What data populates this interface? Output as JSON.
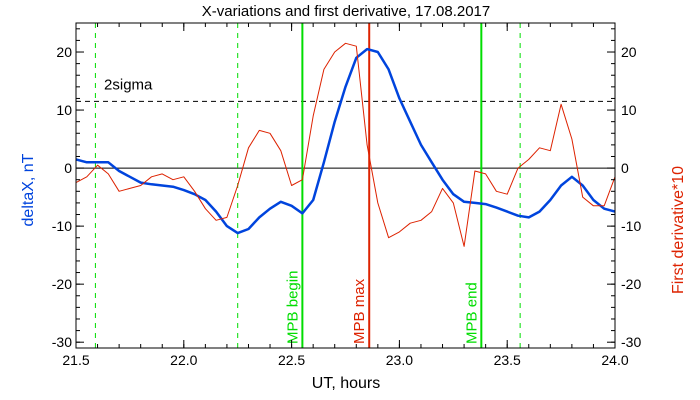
{
  "chart_data": {
    "type": "line",
    "title": "X-variations and first derivative, 17.08.2017",
    "xlabel": "UT, hours",
    "ylabel_left": "deltaX, nT",
    "ylabel_right": "First derivative*10",
    "xlim": [
      21.5,
      24.0
    ],
    "ylim": [
      -31,
      25
    ],
    "x_ticks": [
      "21.5",
      "22.0",
      "22.5",
      "23.0",
      "23.5",
      "24.0"
    ],
    "y_ticks": [
      "20",
      "10",
      "0",
      "-10",
      "-20",
      "-30"
    ],
    "threshold": {
      "label": "2sigma",
      "value": 11.5
    },
    "markers": [
      {
        "name": "MPB begin",
        "x": 22.55,
        "color": "#00dd00",
        "style": "solid"
      },
      {
        "name": "MPB max",
        "x": 22.86,
        "color": "#dd2200",
        "style": "solid"
      },
      {
        "name": "MPB end",
        "x": 23.38,
        "color": "#00dd00",
        "style": "solid"
      },
      {
        "name": "",
        "x": 21.59,
        "color": "#00dd00",
        "style": "dashed"
      },
      {
        "name": "",
        "x": 22.25,
        "color": "#00dd00",
        "style": "dashed"
      },
      {
        "name": "",
        "x": 23.56,
        "color": "#00dd00",
        "style": "dashed"
      }
    ],
    "series": [
      {
        "color": "#0044dd",
        "x": [
          21.5,
          21.55,
          21.6,
          21.65,
          21.7,
          21.75,
          21.8,
          21.85,
          21.9,
          21.95,
          22.0,
          22.05,
          22.1,
          22.15,
          22.2,
          22.25,
          22.3,
          22.35,
          22.4,
          22.45,
          22.5,
          22.55,
          22.6,
          22.65,
          22.7,
          22.75,
          22.8,
          22.85,
          22.9,
          22.95,
          23.0,
          23.05,
          23.1,
          23.15,
          23.2,
          23.25,
          23.3,
          23.35,
          23.4,
          23.45,
          23.5,
          23.55,
          23.6,
          23.65,
          23.7,
          23.75,
          23.8,
          23.85,
          23.9,
          23.95,
          24.0
        ],
        "values": [
          1.5,
          1.0,
          1.0,
          1.0,
          -0.5,
          -1.5,
          -2.5,
          -2.8,
          -3.0,
          -3.2,
          -3.8,
          -4.5,
          -5.5,
          -7.5,
          -10.0,
          -11.2,
          -10.5,
          -8.5,
          -7.0,
          -5.8,
          -6.5,
          -7.8,
          -5.5,
          1.0,
          8.0,
          14.0,
          19.0,
          20.5,
          20.0,
          17.0,
          12.0,
          8.0,
          4.0,
          1.0,
          -2.0,
          -4.5,
          -5.8,
          -6.0,
          -6.2,
          -6.8,
          -7.5,
          -8.2,
          -8.5,
          -7.5,
          -5.5,
          -3.0,
          -1.5,
          -3.0,
          -5.5,
          -7.0,
          -7.5
        ]
      },
      {
        "color": "#dd2200",
        "x": [
          21.5,
          21.55,
          21.6,
          21.65,
          21.7,
          21.75,
          21.8,
          21.85,
          21.9,
          21.95,
          22.0,
          22.05,
          22.1,
          22.15,
          22.2,
          22.25,
          22.3,
          22.35,
          22.4,
          22.45,
          22.5,
          22.55,
          22.6,
          22.65,
          22.7,
          22.75,
          22.8,
          22.85,
          22.9,
          22.95,
          23.0,
          23.05,
          23.1,
          23.15,
          23.2,
          23.25,
          23.3,
          23.35,
          23.4,
          23.45,
          23.5,
          23.55,
          23.6,
          23.65,
          23.7,
          23.75,
          23.8,
          23.85,
          23.9,
          23.95,
          24.0
        ],
        "values": [
          -2.5,
          -1.5,
          0.5,
          -1.0,
          -4.0,
          -3.5,
          -3.0,
          -1.5,
          -1.0,
          -2.0,
          -1.5,
          -4.0,
          -7.0,
          -9.0,
          -8.5,
          -3.0,
          3.5,
          6.5,
          6.0,
          3.0,
          -3.0,
          -2.0,
          9.0,
          17.0,
          20.0,
          21.5,
          21.0,
          4.0,
          -6.0,
          -12.0,
          -11.0,
          -9.5,
          -9.0,
          -7.5,
          -3.5,
          -6.0,
          -13.5,
          -0.5,
          -1.0,
          -4.0,
          -4.5,
          0.0,
          1.5,
          3.5,
          3.0,
          11.0,
          5.0,
          -5.0,
          -6.5,
          -6.5,
          -1.5
        ]
      }
    ]
  }
}
